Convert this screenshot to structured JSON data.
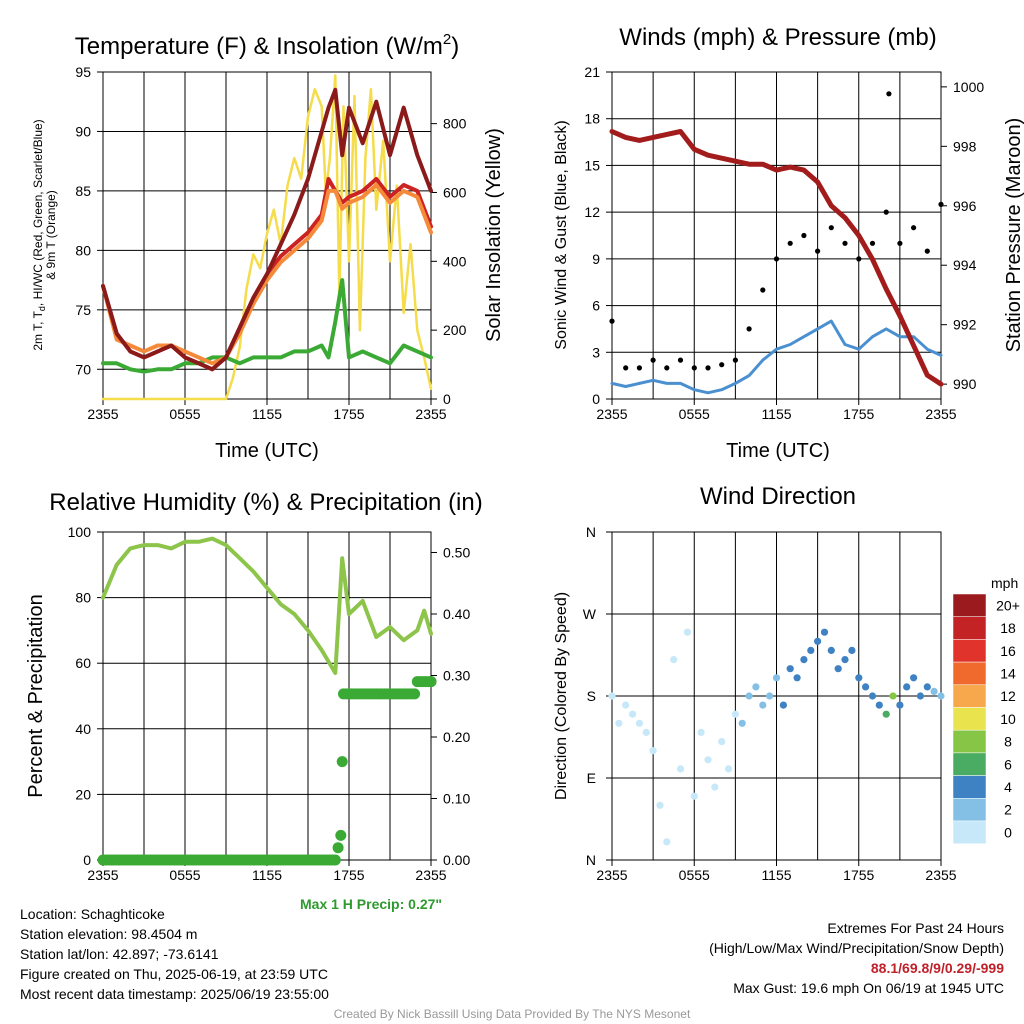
{
  "chart_data": [
    {
      "type": "line",
      "title": "Temperature (F) & Insolation (W/m2)",
      "title_main": "Temperature (F) & Insolation (W/m",
      "title_sup": "2",
      "title_close": ")",
      "xlabel": "Time (UTC)",
      "ylabel_lines": [
        "2m T, T",
        "d",
        ", HI/WC (Red, Green, Scarlet/Blue)",
        "& 9m T (Orange)"
      ],
      "y2label": "Solar Insolation (Yellow)",
      "xticks": [
        "2355",
        "0555",
        "1155",
        "1755",
        "2355"
      ],
      "xlim": [
        0,
        24
      ],
      "ylim": [
        67.5,
        95
      ],
      "yticks": [
        70,
        75,
        80,
        85,
        90,
        95
      ],
      "y2lim": [
        0,
        950
      ],
      "y2ticks": [
        0,
        200,
        400,
        600,
        800
      ],
      "grid": true,
      "series": [
        {
          "name": "Red",
          "color": "#cc2222",
          "axis": "left",
          "x": [
            0,
            1,
            2,
            3,
            4,
            5,
            6,
            7,
            8,
            9,
            10,
            11,
            12,
            13,
            14,
            15,
            16,
            16.5,
            17,
            17.5,
            18,
            19,
            20,
            21,
            22,
            23,
            24
          ],
          "values": [
            77,
            73,
            71.5,
            71,
            71.5,
            72,
            71,
            70.5,
            70,
            71,
            73.5,
            76,
            78,
            79.5,
            80.5,
            81.5,
            83,
            86,
            85,
            84,
            84.5,
            85,
            86,
            84.5,
            85.5,
            85,
            82
          ]
        },
        {
          "name": "Green",
          "color": "#3aaa35",
          "axis": "left",
          "x": [
            0,
            1,
            2,
            3,
            4,
            5,
            6,
            7,
            8,
            9,
            10,
            11,
            12,
            13,
            14,
            15,
            16,
            16.5,
            17,
            17.5,
            18,
            19,
            20,
            21,
            22,
            23,
            24
          ],
          "values": [
            70.5,
            70.5,
            70,
            69.8,
            70,
            70,
            70.5,
            70.5,
            71,
            71,
            70.5,
            71,
            71,
            71,
            71.5,
            71.5,
            72,
            71,
            74,
            77.5,
            71,
            71.5,
            71,
            70.5,
            72,
            71.5,
            71
          ]
        },
        {
          "name": "Scarlet",
          "color": "#8b1a1a",
          "axis": "left",
          "x": [
            0,
            1,
            2,
            3,
            4,
            5,
            6,
            7,
            8,
            9,
            10,
            11,
            12,
            13,
            14,
            15,
            16,
            16.5,
            17,
            17.5,
            18,
            19,
            20,
            21,
            22,
            23,
            24
          ],
          "values": [
            77,
            73,
            71.5,
            71,
            71.5,
            72,
            71,
            70.5,
            70,
            71,
            73.5,
            76,
            78,
            80.5,
            83,
            86,
            90,
            92,
            93.5,
            88,
            92,
            89,
            92.5,
            88,
            92,
            88,
            85
          ]
        },
        {
          "name": "Orange",
          "color": "#f58a3a",
          "axis": "left",
          "x": [
            0,
            1,
            2,
            3,
            4,
            5,
            6,
            7,
            8,
            9,
            10,
            11,
            12,
            13,
            14,
            15,
            16,
            16.5,
            17,
            17.5,
            18,
            19,
            20,
            21,
            22,
            23,
            24
          ],
          "values": [
            77,
            72.5,
            72,
            71.5,
            72,
            72,
            71.5,
            71,
            70.5,
            71,
            73,
            75.5,
            77.5,
            79,
            80,
            81,
            82.5,
            85,
            85,
            83.5,
            84,
            84.5,
            85.5,
            84,
            85,
            84.5,
            81.5
          ]
        },
        {
          "name": "Yellow",
          "color": "#f5dc4a",
          "axis": "right",
          "x": [
            0,
            1,
            2,
            3,
            4,
            5,
            6,
            7,
            8,
            9,
            9.5,
            10,
            10.5,
            11,
            11.5,
            12,
            12.5,
            13,
            13.5,
            14,
            14.5,
            15,
            15.5,
            16,
            16.3,
            16.6,
            17,
            17.3,
            17.6,
            18,
            18.4,
            18.8,
            19.2,
            19.6,
            20,
            20.5,
            21,
            21.5,
            22,
            22.5,
            23,
            23.5,
            24
          ],
          "values": [
            0,
            0,
            0,
            0,
            0,
            0,
            0,
            0,
            0,
            0,
            60,
            150,
            320,
            420,
            380,
            480,
            550,
            450,
            620,
            700,
            640,
            820,
            900,
            850,
            600,
            700,
            940,
            300,
            850,
            400,
            880,
            200,
            700,
            900,
            550,
            750,
            400,
            620,
            250,
            450,
            200,
            120,
            30
          ]
        }
      ]
    },
    {
      "type": "scatter",
      "title": "Winds (mph) & Pressure (mb)",
      "xlabel": "Time (UTC)",
      "ylabel": "Sonic Wind & Gust (Blue, Black)",
      "y2label": "Station Pressure (Maroon)",
      "xticks": [
        "2355",
        "0555",
        "1155",
        "1755",
        "2355"
      ],
      "xlim": [
        0,
        24
      ],
      "ylim": [
        0,
        21
      ],
      "yticks": [
        0,
        3,
        6,
        9,
        12,
        15,
        18,
        21
      ],
      "y2lim": [
        989.5,
        1000.5
      ],
      "y2ticks": [
        990,
        992,
        994,
        996,
        998,
        1000
      ],
      "grid": true,
      "max_gust": {
        "x": 20.2,
        "y": 19.6
      },
      "series": [
        {
          "name": "Blue",
          "color": "#4a90d0",
          "type": "line",
          "axis": "left",
          "x": [
            0,
            1,
            2,
            3,
            4,
            5,
            6,
            7,
            8,
            9,
            10,
            11,
            12,
            13,
            14,
            15,
            16,
            17,
            18,
            19,
            20,
            21,
            22,
            23,
            24
          ],
          "values": [
            1,
            0.8,
            1,
            1.2,
            1,
            1,
            0.6,
            0.4,
            0.6,
            1,
            1.5,
            2.5,
            3.2,
            3.5,
            4,
            4.5,
            5,
            3.5,
            3.2,
            4,
            4.5,
            4,
            4,
            3.2,
            2.8
          ]
        },
        {
          "name": "Black",
          "color": "#000000",
          "type": "scatter",
          "axis": "left",
          "x": [
            0,
            1,
            2,
            3,
            4,
            5,
            6,
            7,
            8,
            9,
            10,
            11,
            12,
            13,
            14,
            15,
            16,
            17,
            18,
            19,
            20,
            21,
            22,
            23,
            24
          ],
          "values": [
            5,
            2,
            2,
            2.5,
            2,
            2.5,
            2,
            2,
            2.2,
            2.5,
            4.5,
            7,
            9,
            10,
            10.5,
            9.5,
            11,
            10,
            9,
            10,
            12,
            10,
            11,
            9.5,
            12.5
          ]
        },
        {
          "name": "Maroon",
          "color": "#a31c1c",
          "type": "line",
          "axis": "right",
          "x": [
            0,
            1,
            2,
            3,
            4,
            5,
            6,
            7,
            8,
            9,
            10,
            11,
            12,
            13,
            14,
            15,
            16,
            17,
            18,
            19,
            20,
            21,
            22,
            23,
            24
          ],
          "values": [
            998.5,
            998.3,
            998.2,
            998.3,
            998.4,
            998.5,
            997.9,
            997.7,
            997.6,
            997.5,
            997.4,
            997.4,
            997.2,
            997.3,
            997.2,
            996.8,
            996.0,
            995.6,
            995.0,
            994.2,
            993.2,
            992.3,
            991.3,
            990.3,
            990.0
          ]
        }
      ]
    },
    {
      "type": "line",
      "title": "Relative Humidity (%) & Precipitation (in)",
      "ylabel": "Percent & Precipitation",
      "xticks": [
        "2355",
        "0555",
        "1155",
        "1755",
        "2355"
      ],
      "xlim": [
        0,
        24
      ],
      "ylim": [
        0,
        100
      ],
      "yticks": [
        0,
        20,
        40,
        60,
        80,
        100
      ],
      "y2lim": [
        0,
        0.5333
      ],
      "y2ticks": [
        "0.00",
        "0.10",
        "0.20",
        "0.30",
        "0.40",
        "0.50"
      ],
      "grid": true,
      "series": [
        {
          "name": "Relative Humidity",
          "color": "#8dc44a",
          "type": "line",
          "axis": "left",
          "x": [
            0,
            1,
            2,
            3,
            4,
            5,
            6,
            7,
            8,
            9,
            10,
            11,
            12,
            13,
            14,
            15,
            16,
            17,
            17.5,
            18,
            19,
            20,
            21,
            22,
            23,
            23.5,
            24
          ],
          "values": [
            80,
            90,
            95,
            96,
            96,
            95,
            97,
            97,
            98,
            96,
            92,
            88,
            83,
            78,
            75,
            70,
            64,
            57,
            92,
            75,
            79,
            68,
            71,
            67,
            70,
            76,
            69
          ]
        },
        {
          "name": "Precipitation",
          "color": "#3aaa35",
          "type": "scatter",
          "axis": "right",
          "x": [
            0,
            1,
            2,
            3,
            4,
            5,
            6,
            7,
            8,
            9,
            10,
            11,
            12,
            13,
            14,
            15,
            16,
            17,
            17.2,
            17.4,
            17.5,
            17.6,
            18,
            19,
            20,
            21,
            22,
            23,
            24
          ],
          "values": [
            0,
            0,
            0,
            0,
            0,
            0,
            0,
            0,
            0,
            0,
            0,
            0,
            0,
            0,
            0,
            0,
            0,
            0,
            0.02,
            0.04,
            0.16,
            0.27,
            0.27,
            0.27,
            0.27,
            0.27,
            0.27,
            0.29,
            0.29
          ]
        }
      ]
    },
    {
      "type": "scatter",
      "title": "Wind Direction",
      "ylabel": "Direction (Colored By Speed)",
      "xticks": [
        "2355",
        "0555",
        "1155",
        "1755",
        "2355"
      ],
      "yticks": [
        "N",
        "E",
        "S",
        "W",
        "N"
      ],
      "xlim": [
        0,
        24
      ],
      "ylim": [
        0,
        360
      ],
      "grid": true,
      "legend": {
        "placement": "right",
        "title": "mph",
        "labels": [
          "0",
          "2",
          "4",
          "6",
          "8",
          "10",
          "12",
          "14",
          "16",
          "18",
          "20+"
        ],
        "colors": [
          "#c6e8f8",
          "#84c0e6",
          "#3f82c4",
          "#4aab62",
          "#86c546",
          "#e9e44e",
          "#f8a84c",
          "#ef6a2c",
          "#e0332c",
          "#c42326",
          "#9a1a1e"
        ]
      },
      "series": [
        {
          "name": "",
          "x": [
            0,
            0.5,
            1,
            1.5,
            2,
            2.5,
            3,
            3.5,
            4,
            4.5,
            5,
            5.5,
            6,
            6.5,
            7,
            7.5,
            8,
            8.5,
            9,
            9.5,
            10,
            10.5,
            11,
            11.5,
            12,
            12.5,
            13,
            13.5,
            14,
            14.5,
            15,
            15.5,
            16,
            16.5,
            17,
            17.5,
            18,
            18.5,
            19,
            19.5,
            20,
            20.5,
            21,
            21.5,
            22,
            22.5,
            23,
            23.5,
            24
          ],
          "values": [
            180,
            150,
            170,
            160,
            150,
            140,
            120,
            60,
            20,
            220,
            100,
            250,
            70,
            140,
            110,
            80,
            130,
            100,
            160,
            150,
            180,
            190,
            170,
            180,
            200,
            170,
            210,
            200,
            220,
            230,
            240,
            250,
            230,
            210,
            220,
            230,
            200,
            190,
            180,
            170,
            160,
            180,
            170,
            190,
            200,
            180,
            190,
            185,
            180
          ],
          "speeds": [
            0,
            0,
            0,
            0,
            0,
            0,
            0,
            0,
            0,
            0,
            0,
            0,
            0,
            0,
            0,
            0,
            0,
            0,
            0,
            1,
            1,
            2,
            2,
            2,
            2,
            3,
            3,
            3,
            4,
            4,
            4,
            4,
            4,
            3,
            3,
            4,
            4,
            4,
            3,
            4,
            6,
            7,
            3,
            4,
            4,
            4,
            3,
            2,
            2
          ]
        }
      ]
    }
  ],
  "info": {
    "location": "Location: Schaghticoke",
    "elevation": "Station elevation: 98.4504 m",
    "latlon": "Station lat/lon: 42.897; -73.6141",
    "created": "Figure created on Thu, 2025-06-19, at 23:59 UTC",
    "recent": "Most recent data timestamp: 2025/06/19 23:55:00"
  },
  "max_precip": "Max 1 H Precip: 0.27\"",
  "extremes": {
    "title": "Extremes For Past 24 Hours",
    "subtitle": "(High/Low/Max Wind/Precipitation/Snow Depth)",
    "values": "88.1/69.8/9/0.29/-999",
    "max_gust": "Max Gust: 19.6 mph On 06/19 at 1945 UTC"
  },
  "credit": "Created By Nick Bassill Using Data Provided By The NYS Mesonet"
}
